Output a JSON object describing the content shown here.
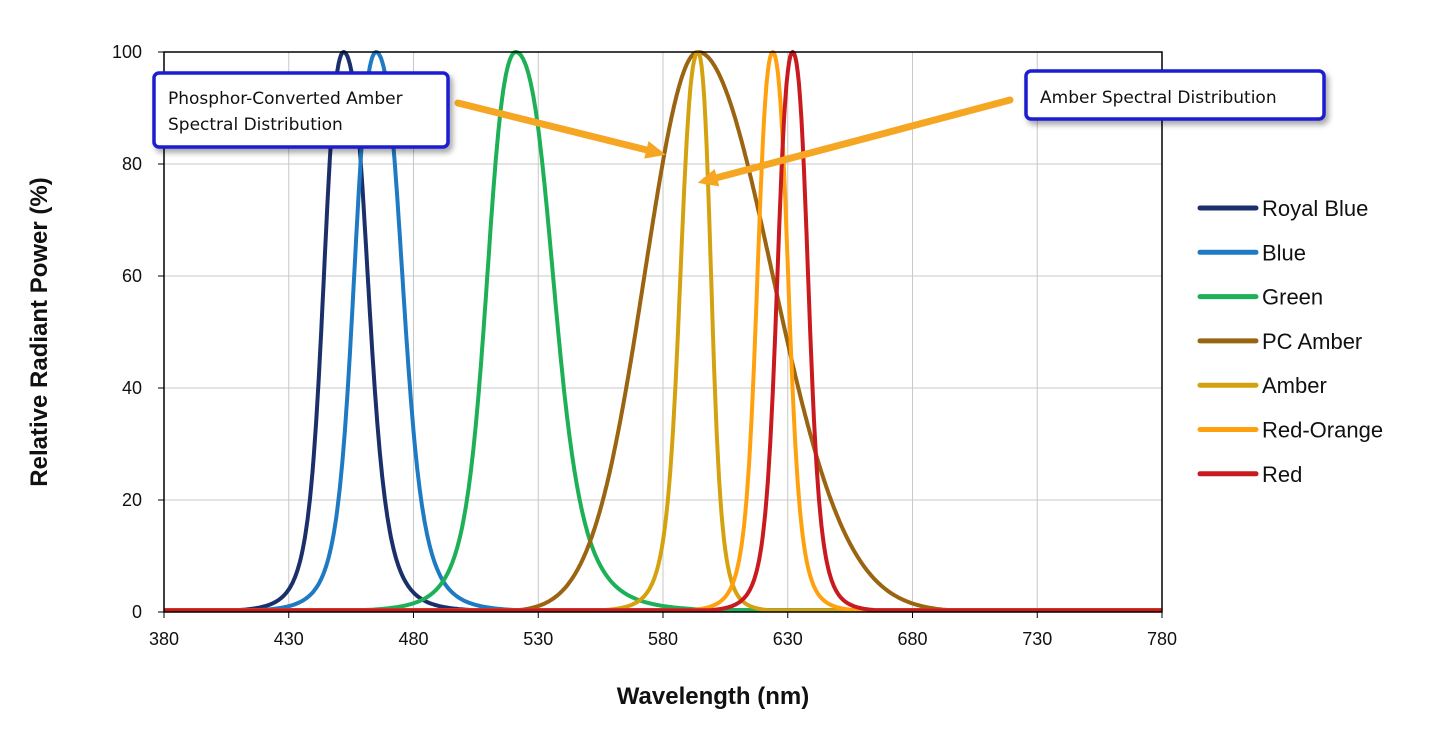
{
  "chart_data": {
    "type": "line",
    "title": "",
    "xlabel": "Wavelength (nm)",
    "ylabel": "Relative Radiant Power (%)",
    "xlim": [
      380,
      780
    ],
    "ylim": [
      0,
      100
    ],
    "x_ticks": [
      380,
      430,
      480,
      530,
      580,
      630,
      680,
      730,
      780
    ],
    "y_ticks": [
      0,
      20,
      40,
      60,
      80,
      100
    ],
    "grid": true,
    "legend_position": "right",
    "series": [
      {
        "name": "Royal Blue",
        "color": "#1b2f6b",
        "peak": 452,
        "fwhm_left": 18,
        "fwhm_right": 22,
        "shape": "lorentz"
      },
      {
        "name": "Blue",
        "color": "#1f7ac4",
        "peak": 465,
        "fwhm_left": 20,
        "fwhm_right": 24,
        "shape": "lorentz"
      },
      {
        "name": "Green",
        "color": "#1db056",
        "peak": 521,
        "fwhm_left": 26,
        "fwhm_right": 34,
        "shape": "lorentz"
      },
      {
        "name": "PC Amber",
        "color": "#9a6410",
        "peak": 594,
        "fwhm_left": 50,
        "fwhm_right": 70,
        "shape": "gauss"
      },
      {
        "name": "Amber",
        "color": "#d4a20f",
        "peak": 594,
        "fwhm_left": 16,
        "fwhm_right": 12,
        "shape": "lorentz"
      },
      {
        "name": "Red-Orange",
        "color": "#ffa10e",
        "peak": 624,
        "fwhm_left": 14,
        "fwhm_right": 14,
        "shape": "lorentz"
      },
      {
        "name": "Red",
        "color": "#c81a1f",
        "peak": 632,
        "fwhm_left": 14,
        "fwhm_right": 14,
        "shape": "lorentz"
      }
    ],
    "annotations": [
      {
        "id": "pc-amber",
        "text_lines": [
          "Phosphor-Converted Amber",
          "Spectral Distribution"
        ],
        "arrow_target": [
          578,
          82
        ]
      },
      {
        "id": "amber",
        "text_lines": [
          "Amber Spectral Distribution"
        ],
        "arrow_target": [
          597,
          77
        ]
      }
    ],
    "annotation_style": {
      "box_border": "#1a1ad0",
      "arrow_color": "#f5a623"
    }
  }
}
